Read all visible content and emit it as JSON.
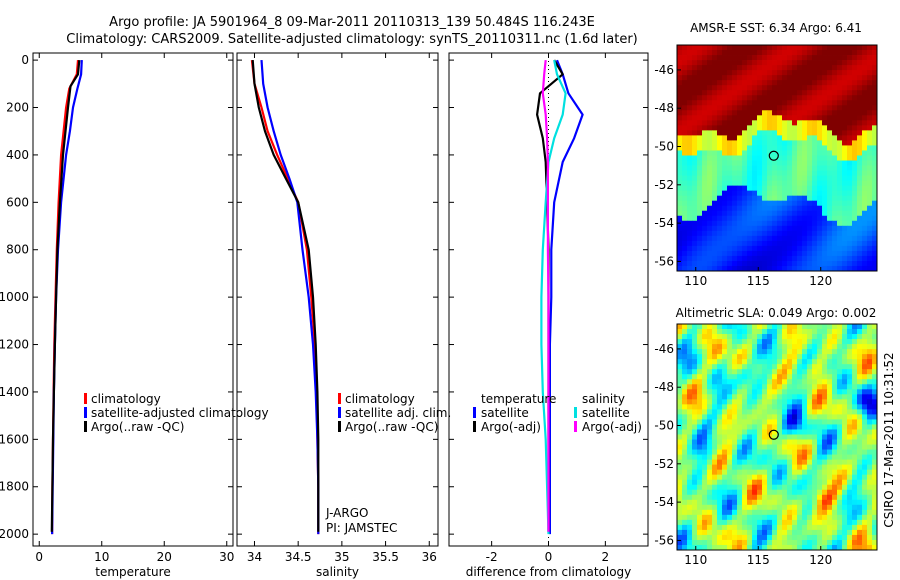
{
  "header": {
    "line1": "Argo profile: JA 5901964_8 09-Mar-2011 20110313_139 50.484S 116.243E",
    "line2": "Climatology: CARS2009. Satellite-adjusted climatology: synTS_20110311.nc (1.6d later)"
  },
  "side_label": "CSIRO 17-Mar-2011 10:31:52",
  "colors": {
    "climatology": "#ff0000",
    "satellite": "#0000ff",
    "argo": "#000000",
    "salinity_satellite": "#00e0e0",
    "salinity_argo": "#ff00ff"
  },
  "chart_data": [
    {
      "type": "line",
      "xlabel": "temperature",
      "ylabel": "",
      "xlim": [
        -1,
        31
      ],
      "ylim": [
        2050,
        -30
      ],
      "xticks": [
        0,
        10,
        20,
        30
      ],
      "yticks": [
        0,
        200,
        400,
        600,
        800,
        1000,
        1200,
        1400,
        1600,
        1800,
        2000
      ],
      "legend": [
        "climatology",
        "satellite-adjusted climatology",
        "Argo(..raw -QC)"
      ],
      "series": [
        {
          "name": "climatology",
          "color": "#ff0000",
          "x": [
            6.2,
            6.0,
            4.8,
            4.3,
            3.9,
            3.5,
            3.1,
            2.8,
            2.6,
            2.4,
            2.3,
            2.2,
            2.1,
            2.05
          ],
          "y": [
            0,
            60,
            120,
            200,
            300,
            400,
            600,
            800,
            1000,
            1200,
            1400,
            1600,
            1800,
            2000
          ]
        },
        {
          "name": "satellite-adjusted climatology",
          "color": "#0000ff",
          "x": [
            6.8,
            6.7,
            6.1,
            5.4,
            4.9,
            4.3,
            3.5,
            3.0,
            2.7,
            2.5,
            2.35,
            2.25,
            2.15,
            2.05
          ],
          "y": [
            0,
            60,
            120,
            200,
            300,
            400,
            600,
            800,
            1000,
            1200,
            1400,
            1600,
            1800,
            2000
          ]
        },
        {
          "name": "Argo(..raw -QC)",
          "color": "#000000",
          "x": [
            6.4,
            6.2,
            5.0,
            4.6,
            4.2,
            3.8,
            3.3,
            2.9,
            2.7,
            2.5,
            2.35,
            2.2,
            2.1,
            2.0
          ],
          "y": [
            0,
            60,
            110,
            200,
            300,
            400,
            600,
            800,
            1000,
            1200,
            1400,
            1600,
            1800,
            1990
          ]
        }
      ]
    },
    {
      "type": "line",
      "xlabel": "salinity",
      "xlim": [
        33.8,
        36.1
      ],
      "ylim": [
        2050,
        -30
      ],
      "xticks": [
        34,
        34.5,
        35,
        35.5,
        36
      ],
      "xticklabels": [
        "34",
        "34.5",
        "35",
        "35.5",
        "36"
      ],
      "legend": [
        "climatology",
        "satellite adj. clim.",
        "Argo(..raw -QC)"
      ],
      "annotations": [
        "J-ARGO",
        "PI: JAMSTEC"
      ],
      "series": [
        {
          "name": "climatology",
          "color": "#ff0000",
          "x": [
            33.97,
            34.0,
            34.08,
            34.15,
            34.26,
            34.38,
            34.5,
            34.6,
            34.65,
            34.69,
            34.71,
            34.72,
            34.73,
            34.73
          ],
          "y": [
            0,
            100,
            200,
            300,
            400,
            500,
            600,
            800,
            1000,
            1200,
            1400,
            1600,
            1800,
            2000
          ]
        },
        {
          "name": "satellite adj. clim.",
          "color": "#0000ff",
          "x": [
            34.08,
            34.1,
            34.15,
            34.22,
            34.3,
            34.4,
            34.49,
            34.55,
            34.62,
            34.67,
            34.7,
            34.72,
            34.73,
            34.73
          ],
          "y": [
            0,
            100,
            200,
            300,
            400,
            500,
            600,
            800,
            1000,
            1200,
            1400,
            1600,
            1800,
            2000
          ]
        },
        {
          "name": "Argo(..raw -QC)",
          "color": "#000000",
          "x": [
            33.98,
            34.0,
            34.05,
            34.12,
            34.22,
            34.36,
            34.5,
            34.62,
            34.67,
            34.7,
            34.72,
            34.73,
            34.73,
            34.73
          ],
          "y": [
            0,
            100,
            200,
            300,
            400,
            500,
            600,
            800,
            1000,
            1200,
            1400,
            1600,
            1800,
            1990
          ]
        }
      ]
    },
    {
      "type": "line",
      "xlabel": "difference from climatology",
      "xlim": [
        -3.5,
        3.5
      ],
      "ylim": [
        2050,
        -30
      ],
      "xticks": [
        -2,
        0,
        2
      ],
      "legend_groups": [
        {
          "title": "temperature",
          "items": [
            "satellite",
            "Argo(-adj)"
          ]
        },
        {
          "title": "salinity",
          "items": [
            "satellite",
            "Argo(-adj)"
          ]
        }
      ],
      "series": [
        {
          "name": "temperature satellite",
          "color": "#0000ff",
          "x": [
            0.3,
            0.5,
            0.7,
            1.2,
            0.9,
            0.5,
            0.2,
            0.1,
            0.1,
            0.05,
            0.05,
            0.05,
            0.05,
            0.05
          ],
          "y": [
            0,
            60,
            140,
            230,
            330,
            430,
            600,
            800,
            1000,
            1200,
            1400,
            1600,
            1800,
            2000
          ]
        },
        {
          "name": "temperature Argo(-adj)",
          "color": "#000000",
          "x": [
            0.2,
            0.5,
            -0.3,
            -0.4,
            -0.2,
            -0.1,
            -0.05,
            0.0,
            0.0,
            0.0,
            0.0,
            0.0,
            0.0,
            0.0
          ],
          "y": [
            0,
            60,
            140,
            230,
            330,
            430,
            600,
            800,
            1000,
            1200,
            1400,
            1600,
            1800,
            1990
          ]
        },
        {
          "name": "salinity satellite",
          "color": "#00e0e0",
          "x": [
            0.2,
            0.3,
            0.6,
            0.5,
            0.2,
            0.0,
            -0.1,
            -0.2,
            -0.25,
            -0.25,
            -0.2,
            -0.1,
            -0.05,
            0.0
          ],
          "y": [
            0,
            60,
            140,
            230,
            330,
            430,
            600,
            800,
            1000,
            1200,
            1400,
            1600,
            1800,
            2000
          ]
        },
        {
          "name": "salinity Argo(-adj)",
          "color": "#ff00ff",
          "x": [
            -0.1,
            -0.15,
            -0.2,
            -0.1,
            -0.05,
            -0.02,
            -0.02,
            -0.02,
            0.0,
            0.0,
            0.0,
            0.0,
            0.0,
            0.0
          ],
          "y": [
            0,
            60,
            140,
            230,
            330,
            430,
            600,
            800,
            1000,
            1200,
            1400,
            1600,
            1800,
            1990
          ]
        }
      ]
    },
    {
      "type": "heatmap",
      "title": "AMSR-E SST: 6.34 Argo: 6.41",
      "xlim": [
        108.5,
        124.5
      ],
      "ylim": [
        -56.5,
        -44.7
      ],
      "xticks": [
        110,
        115,
        120
      ],
      "yticks": [
        -46,
        -48,
        -50,
        -52,
        -54,
        -56
      ],
      "marker": {
        "lon": 116.243,
        "lat": -50.484
      },
      "pattern": "sst"
    },
    {
      "type": "heatmap",
      "title": "Altimetric SLA: 0.049 Argo: 0.002",
      "xlim": [
        108.5,
        124.5
      ],
      "ylim": [
        -56.5,
        -44.7
      ],
      "xticks": [
        110,
        115,
        120
      ],
      "yticks": [
        -46,
        -48,
        -50,
        -52,
        -54,
        -56
      ],
      "marker": {
        "lon": 116.243,
        "lat": -50.484
      },
      "pattern": "sla"
    }
  ]
}
